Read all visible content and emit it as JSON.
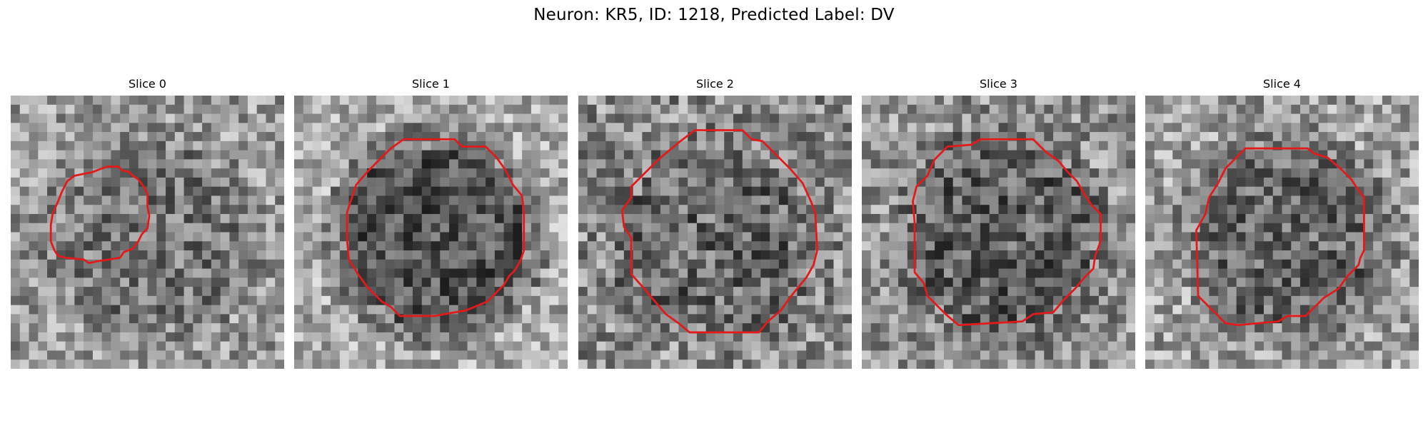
{
  "figure": {
    "title": "Neuron: KR5, ID: 1218, Predicted Label: DV"
  },
  "panels": [
    {
      "title": "Slice 0",
      "outline_color": "#e31a1c",
      "base_gray": 155,
      "center_dark": -35,
      "contrast": 62
    },
    {
      "title": "Slice 1",
      "outline_color": "#e31a1c",
      "base_gray": 170,
      "center_dark": -85,
      "contrast": 58
    },
    {
      "title": "Slice 2",
      "outline_color": "#e31a1c",
      "base_gray": 140,
      "center_dark": -35,
      "contrast": 70
    },
    {
      "title": "Slice 3",
      "outline_color": "#e31a1c",
      "base_gray": 145,
      "center_dark": -50,
      "contrast": 66
    },
    {
      "title": "Slice 4",
      "outline_color": "#e31a1c",
      "base_gray": 160,
      "center_dark": -55,
      "contrast": 64
    }
  ]
}
